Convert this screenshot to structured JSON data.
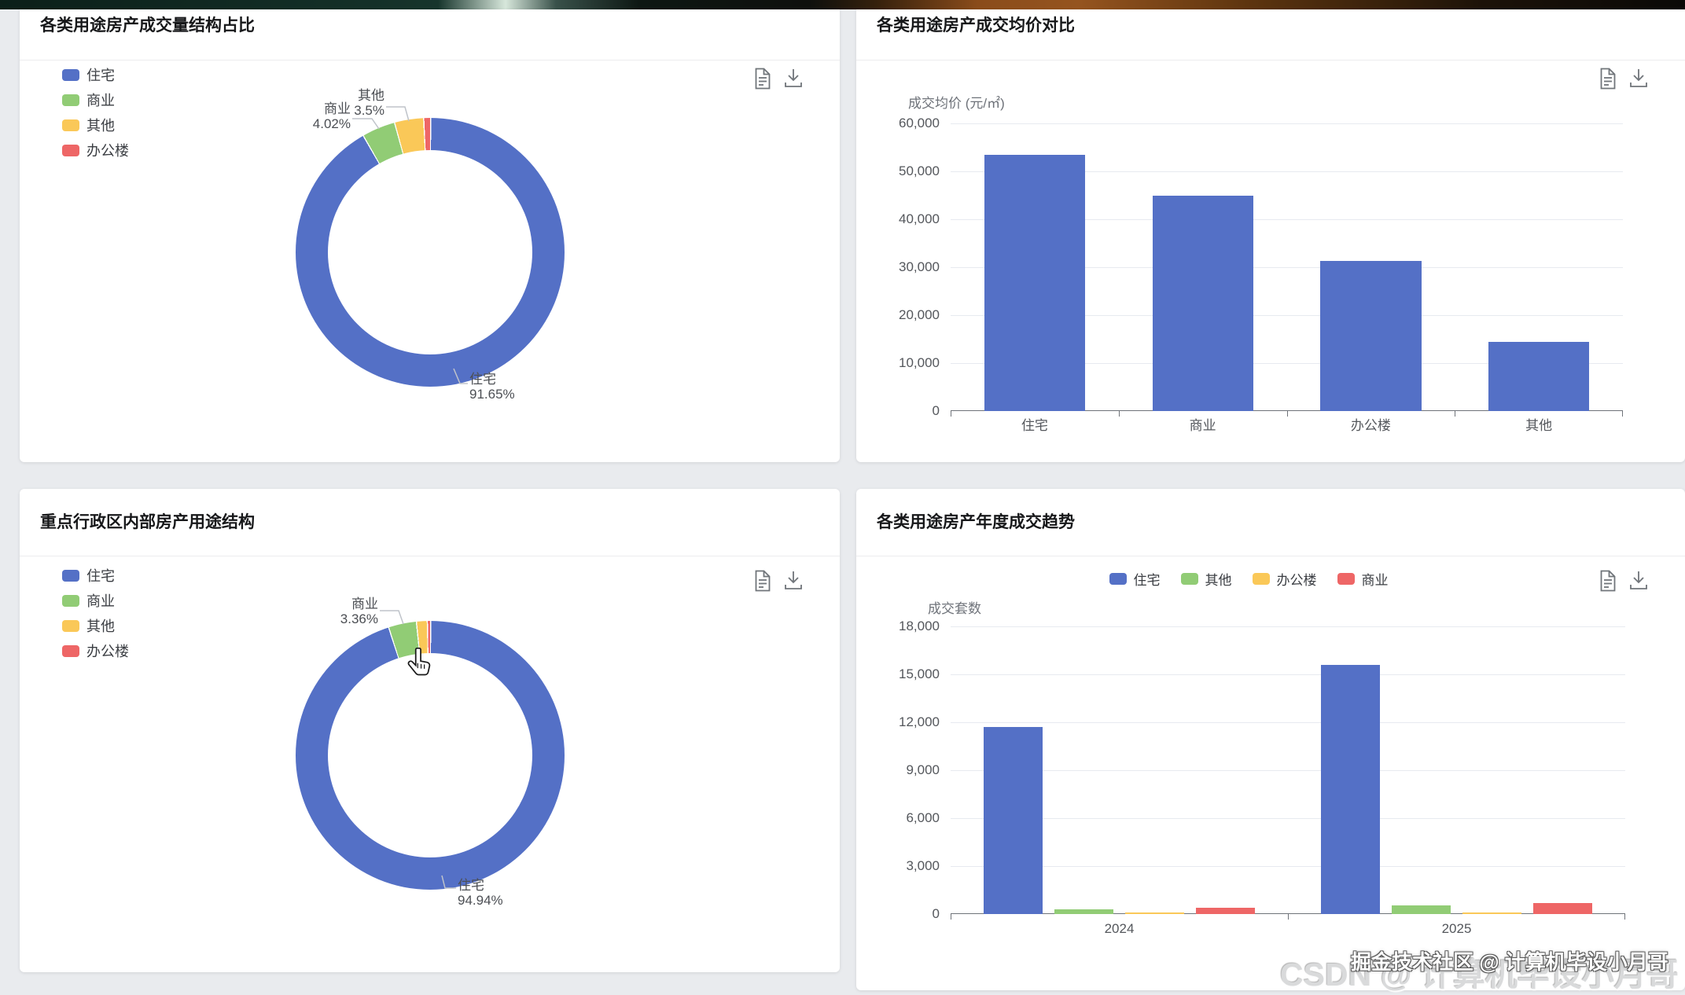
{
  "page": {
    "watermarks": {
      "back": "CSDN @ 计算机毕设小月哥",
      "front": "掘金技术社区 @ 计算机毕设小月哥"
    }
  },
  "palette": {
    "blue": "#5470c6",
    "green": "#91cc75",
    "yellow": "#fac858",
    "red": "#ee6666"
  },
  "toolbar": {
    "data_view_icon": "document-icon",
    "download_icon": "download-icon"
  },
  "chart_data": [
    {
      "id": "usage-volume-share",
      "type": "pie",
      "title": "各类用途房产成交量结构占比",
      "legend_position": "left",
      "donut": true,
      "series": [
        {
          "name": "住宅",
          "pct": 91.65,
          "color": "#5470c6"
        },
        {
          "name": "商业",
          "pct": 4.02,
          "color": "#91cc75"
        },
        {
          "name": "其他",
          "pct": 3.5,
          "color": "#fac858"
        },
        {
          "name": "办公楼",
          "pct": 0.83,
          "color": "#ee6666"
        }
      ],
      "callouts": [
        {
          "name": "商业",
          "pct": "4.02%"
        },
        {
          "name": "其他",
          "pct": "3.5%"
        },
        {
          "name": "住宅",
          "pct": "91.65%"
        }
      ]
    },
    {
      "id": "avg-price-by-usage",
      "type": "bar",
      "title": "各类用途房产成交均价对比",
      "ylabel": "成交均价 (元/㎡)",
      "categories": [
        "住宅",
        "商业",
        "办公楼",
        "其他"
      ],
      "values": [
        53500,
        45000,
        31300,
        14500
      ],
      "bar_color": "#5470c6",
      "ylim": [
        0,
        60000
      ],
      "yticks": [
        "60,000",
        "50,000",
        "40,000",
        "30,000",
        "20,000",
        "10,000",
        "0"
      ],
      "grid": true,
      "legend_position": "none"
    },
    {
      "id": "district-usage-share",
      "type": "pie",
      "title": "重点行政区内部房产用途结构",
      "legend_position": "left",
      "donut": true,
      "series": [
        {
          "name": "住宅",
          "pct": 94.94,
          "color": "#5470c6"
        },
        {
          "name": "商业",
          "pct": 3.36,
          "color": "#91cc75"
        },
        {
          "name": "其他",
          "pct": 1.3,
          "color": "#fac858"
        },
        {
          "name": "办公楼",
          "pct": 0.4,
          "color": "#ee6666"
        }
      ],
      "callouts": [
        {
          "name": "商业",
          "pct": "3.36%"
        },
        {
          "name": "住宅",
          "pct": "94.94%"
        }
      ]
    },
    {
      "id": "yearly-trend-by-usage",
      "type": "bar-grouped",
      "title": "各类用途房产年度成交趋势",
      "ylabel": "成交套数",
      "categories": [
        "2024",
        "2025"
      ],
      "series": [
        {
          "name": "住宅",
          "color": "#5470c6",
          "values": [
            11700,
            15600
          ]
        },
        {
          "name": "其他",
          "color": "#91cc75",
          "values": [
            310,
            560
          ]
        },
        {
          "name": "办公楼",
          "color": "#fac858",
          "values": [
            120,
            110
          ]
        },
        {
          "name": "商业",
          "color": "#ee6666",
          "values": [
            400,
            680
          ]
        }
      ],
      "ylim": [
        0,
        18000
      ],
      "yticks": [
        "18,000",
        "15,000",
        "12,000",
        "9,000",
        "6,000",
        "3,000",
        "0"
      ],
      "grid": true,
      "legend_position": "top-center"
    }
  ]
}
